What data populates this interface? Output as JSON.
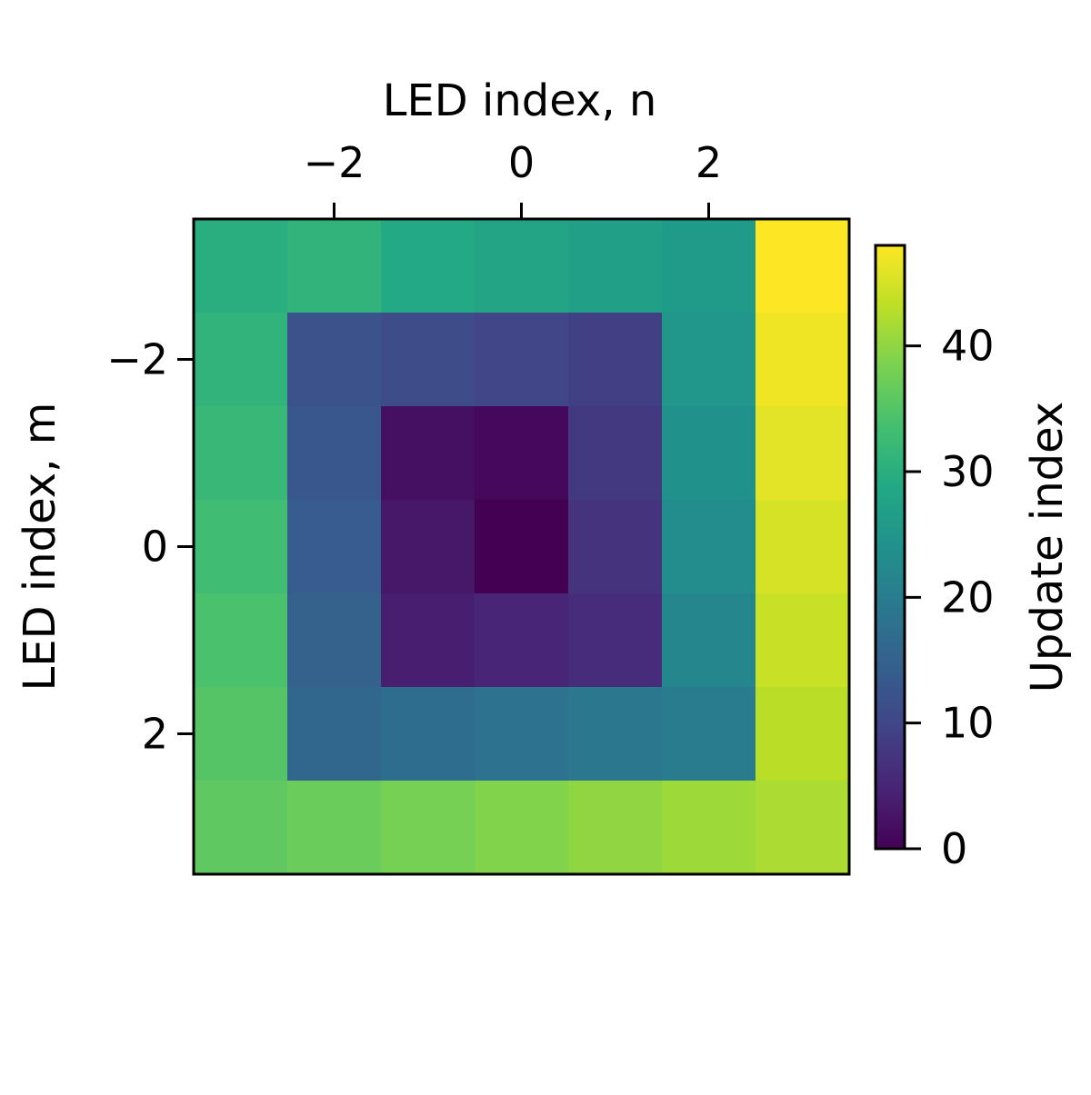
{
  "chart_data": {
    "type": "heatmap",
    "title": "",
    "xlabel": "LED index, n",
    "ylabel": "LED index, m",
    "x_axis_position": "top",
    "x_values": [
      -3,
      -2,
      -1,
      0,
      1,
      2,
      3
    ],
    "y_values": [
      -3,
      -2,
      -1,
      0,
      1,
      2,
      3
    ],
    "xticks": [
      -2,
      0,
      2
    ],
    "yticks": [
      -2,
      0,
      2
    ],
    "xtick_labels": [
      "−2",
      "0",
      "2"
    ],
    "ytick_labels": [
      "−2",
      "0",
      "2"
    ],
    "values": [
      [
        30,
        31,
        29,
        28,
        27,
        26,
        48
      ],
      [
        31,
        12,
        11,
        10,
        9,
        25,
        47
      ],
      [
        32,
        13,
        2,
        1,
        8,
        24,
        46
      ],
      [
        33,
        14,
        3,
        0,
        7,
        23,
        45
      ],
      [
        34,
        15,
        4,
        5,
        6,
        22,
        44
      ],
      [
        35,
        16,
        17,
        18,
        19,
        20,
        43
      ],
      [
        36,
        37,
        38,
        39,
        40,
        41,
        42
      ]
    ],
    "colormap": "viridis",
    "colorbar": {
      "label": "Update index",
      "range": [
        0,
        48
      ],
      "ticks": [
        0,
        10,
        20,
        30,
        40
      ],
      "tick_labels": [
        "0",
        "10",
        "20",
        "30",
        "40"
      ],
      "position": "right"
    },
    "grid": false
  }
}
